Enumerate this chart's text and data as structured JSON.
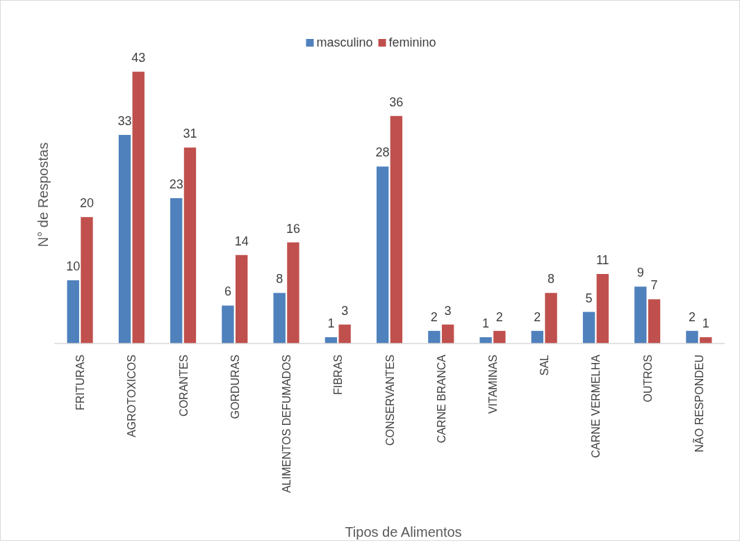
{
  "chart_data": {
    "type": "bar",
    "xlabel": "Tipos de Alimentos",
    "ylabel": "N° de Respostas",
    "categories": [
      "FRITURAS",
      "AGROTOXICOS",
      "CORANTES",
      "GORDURAS",
      "ALIMENTOS DEFUMADOS",
      "FIBRAS",
      "CONSERVANTES",
      "CARNE BRANCA",
      "VITAMINAS",
      "SAL",
      "CARNE VERMELHA",
      "OUTROS",
      "NÃO RESPONDEU"
    ],
    "series": [
      {
        "name": "masculino",
        "color": "#4f81bd",
        "values": [
          10,
          33,
          23,
          6,
          8,
          1,
          28,
          2,
          1,
          2,
          5,
          9,
          2
        ]
      },
      {
        "name": "feminino",
        "color": "#c0504d",
        "values": [
          20,
          43,
          31,
          14,
          16,
          3,
          36,
          3,
          2,
          8,
          11,
          7,
          1
        ]
      }
    ],
    "data_labels": true,
    "legend": "top"
  }
}
